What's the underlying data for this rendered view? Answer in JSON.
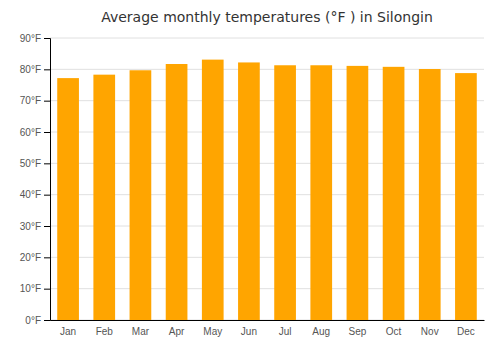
{
  "chart_data": {
    "type": "bar",
    "title": "Average monthly temperatures (°F ) in Silongin",
    "categories": [
      "Jan",
      "Feb",
      "Mar",
      "Apr",
      "May",
      "Jun",
      "Jul",
      "Aug",
      "Sep",
      "Oct",
      "Nov",
      "Dec"
    ],
    "values": [
      77.2,
      78.3,
      79.7,
      81.7,
      83.1,
      82.2,
      81.3,
      81.3,
      81.1,
      80.8,
      80.1,
      78.8
    ],
    "color": "#FFA500",
    "ylim": [
      0,
      90
    ],
    "yticks": [
      {
        "value": 0,
        "label": "0°F"
      },
      {
        "value": 10,
        "label": "10°F"
      },
      {
        "value": 20,
        "label": "20°F"
      },
      {
        "value": 30,
        "label": "30°F"
      },
      {
        "value": 40,
        "label": "40°F"
      },
      {
        "value": 50,
        "label": "50°F"
      },
      {
        "value": 60,
        "label": "60°F"
      },
      {
        "value": 70,
        "label": "70°F"
      },
      {
        "value": 80,
        "label": "80°F"
      },
      {
        "value": 90,
        "label": "90°F"
      }
    ],
    "grid": true
  }
}
